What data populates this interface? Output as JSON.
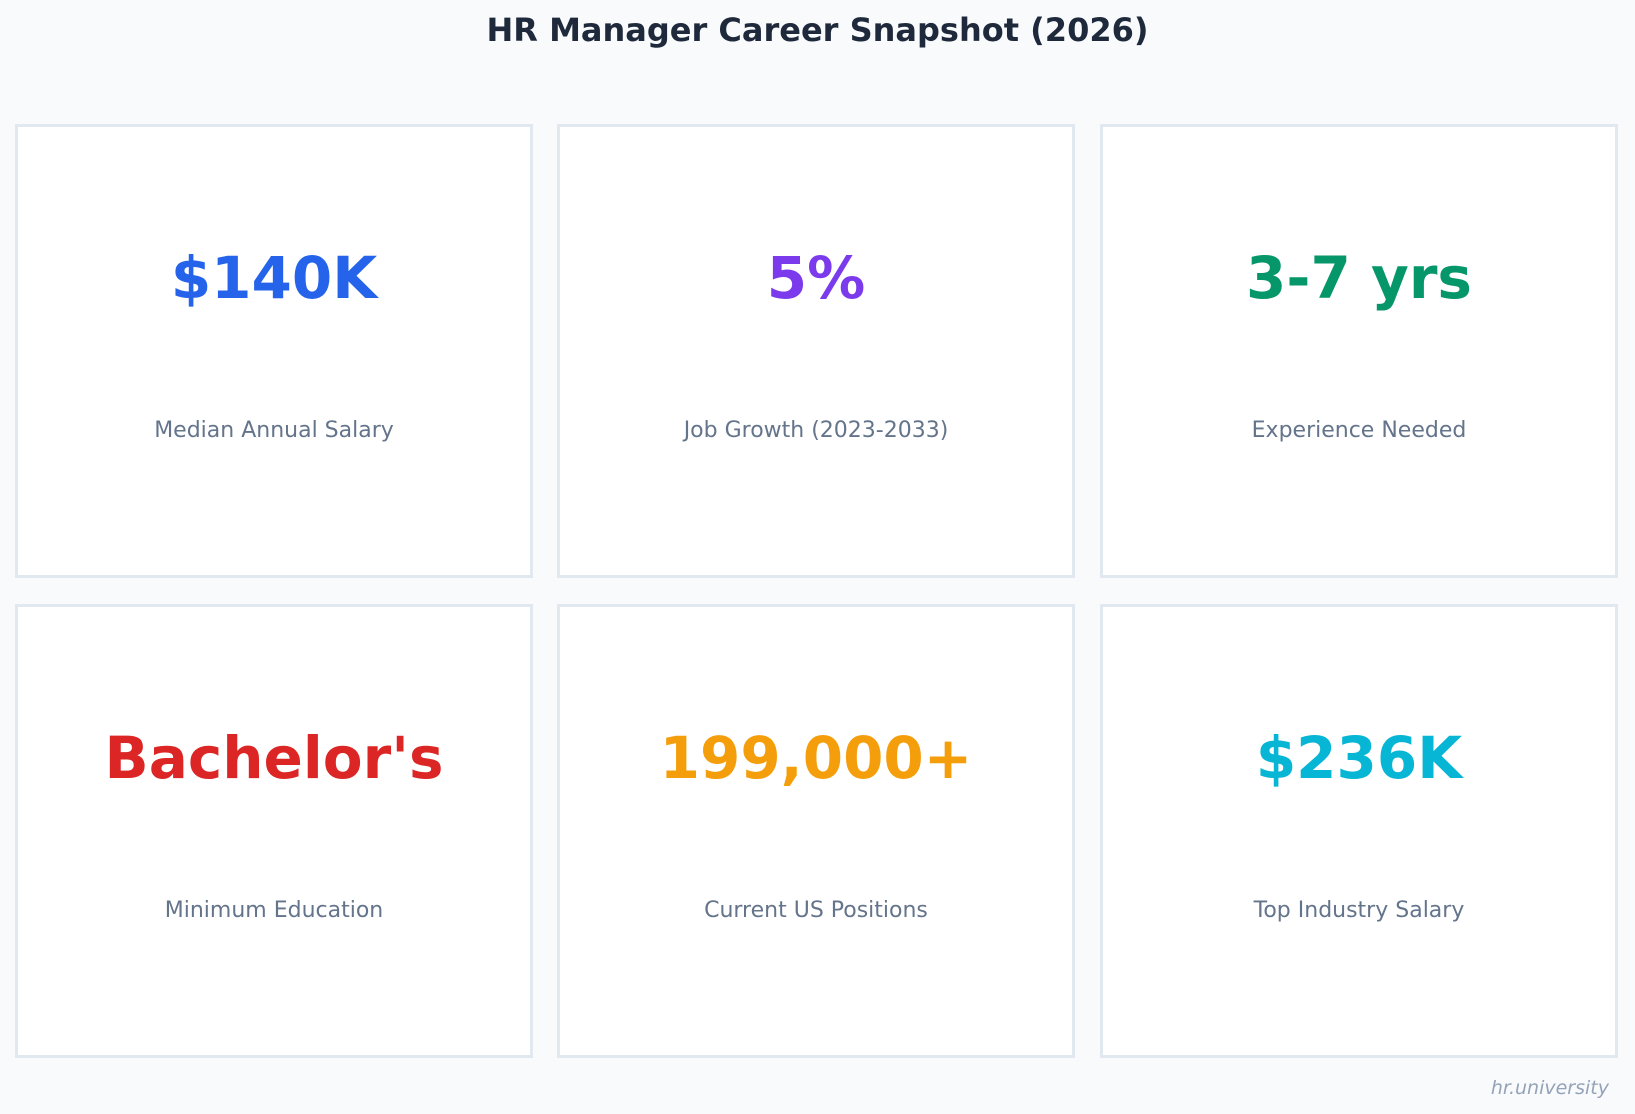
{
  "title": "HR Manager Career Snapshot (2026)",
  "cards": [
    {
      "value": "$140K",
      "label": "Median Annual Salary",
      "color": "#2563eb"
    },
    {
      "value": "5%",
      "label": "Job Growth (2023-2033)",
      "color": "#7c3aed"
    },
    {
      "value": "3-7 yrs",
      "label": "Experience Needed",
      "color": "#059669"
    },
    {
      "value": "Bachelor's",
      "label": "Minimum Education",
      "color": "#dc2626"
    },
    {
      "value": "199,000+",
      "label": "Current US Positions",
      "color": "#f59e0b"
    },
    {
      "value": "$236K",
      "label": "Top Industry Salary",
      "color": "#06b6d4"
    }
  ],
  "watermark": "hr.university"
}
